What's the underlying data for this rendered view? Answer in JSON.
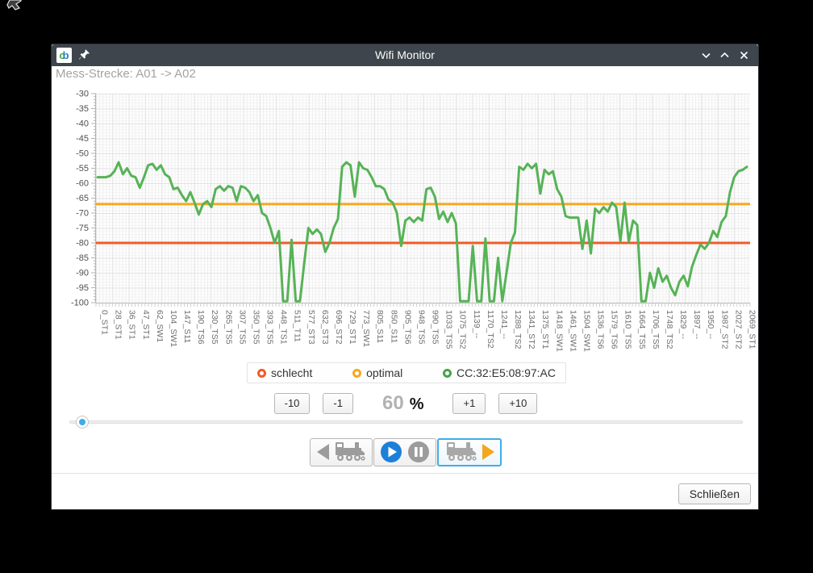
{
  "window": {
    "title": "Wifi Monitor",
    "app_icon": {
      "letter_c": "c",
      "letter_b": "b"
    },
    "subtitle": "Mess-Strecke: A01 -> A02"
  },
  "chart_data": {
    "type": "line",
    "title": "",
    "xlabel": "",
    "ylabel": "",
    "ylim": [
      -100,
      -30
    ],
    "grid": true,
    "legend_position": "bottom",
    "y_ticks": [
      -30,
      -35,
      -40,
      -45,
      -50,
      -55,
      -60,
      -65,
      -70,
      -75,
      -80,
      -85,
      -90,
      -95,
      -100
    ],
    "x_labels": [
      "0_ST1",
      "28_ST1",
      "36_ST1",
      "47_ST1",
      "62_SW1",
      "104_SW1",
      "147_S11",
      "190_TS6",
      "230_TS5",
      "265_TS5",
      "307_TS5",
      "350_TS5",
      "393_TS5",
      "448_TS1",
      "511_T11",
      "577_ST3",
      "632_ST3",
      "696_ST2",
      "729_ST1",
      "773_SW1",
      "805_S11",
      "850_S11",
      "905_TS6",
      "948_TS5",
      "990_TS5",
      "1033_TS5",
      "1075_TS2",
      "1139_--",
      "1170_TS2",
      "1241_--",
      "1288_TS2",
      "1341_ST2",
      "1375_ST1",
      "1418_SW1",
      "1461_SW1",
      "1504_SW1",
      "1536_TS6",
      "1579_TS6",
      "1610_TS5",
      "1664_TS5",
      "1706_TS5",
      "1748_TS2",
      "1829_--",
      "1897_--",
      "1950_--",
      "1987_ST2",
      "2027_ST2",
      "2069_ST1"
    ],
    "thresholds": [
      {
        "name": "schlecht",
        "value": -80,
        "color": "#f25a28"
      },
      {
        "name": "optimal",
        "value": -67,
        "color": "#f8a71e"
      }
    ],
    "series": [
      {
        "name": "CC:32:E5:08:97:AC",
        "color": "#56b356",
        "values": [
          -58,
          -58,
          -58,
          -57.5,
          -56,
          -53,
          -57,
          -55,
          -57.5,
          -58,
          -61.5,
          -58,
          -54,
          -53.5,
          -55.5,
          -54,
          -57,
          -58,
          -62,
          -61.5,
          -64,
          -66,
          -63,
          -66.5,
          -70.5,
          -67,
          -66,
          -68,
          -62,
          -61,
          -62.5,
          -61,
          -61.5,
          -66,
          -61,
          -61.5,
          -63,
          -66,
          -64,
          -70,
          -71,
          -75,
          -80,
          -76,
          -99.5,
          -99.5,
          -79,
          -99.5,
          -99.5,
          -87,
          -75,
          -77,
          -75.5,
          -77,
          -83,
          -80,
          -75,
          -72,
          -54.5,
          -53,
          -54,
          -64.5,
          -53,
          -55,
          -55.5,
          -58,
          -61,
          -61,
          -62,
          -65.5,
          -66.5,
          -70,
          -81,
          -72.5,
          -71.5,
          -73,
          -71.5,
          -72.5,
          -62,
          -61.5,
          -64.5,
          -72,
          -69.5,
          -73,
          -70,
          -73.5,
          -99.5,
          -99.5,
          -99.5,
          -81,
          -99.5,
          -99.5,
          -78.5,
          -99.5,
          -99.5,
          -85,
          -99.5,
          -90,
          -80,
          -76.5,
          -54.5,
          -55.5,
          -53.5,
          -55,
          -53.5,
          -63.5,
          -55.5,
          -57,
          -56,
          -62,
          -64.5,
          -71,
          -71.5,
          -71.5,
          -71.5,
          -82,
          -72.5,
          -83.5,
          -68.5,
          -70,
          -68,
          -69.5,
          -66.5,
          -68,
          -79.5,
          -66.5,
          -79.5,
          -72.5,
          -74,
          -99.5,
          -99.5,
          -90,
          -95,
          -88.5,
          -93,
          -91,
          -95,
          -97.5,
          -93,
          -91,
          -94.5,
          -88,
          -84,
          -80.5,
          -82,
          -80,
          -76,
          -78,
          -73,
          -71,
          -63,
          -58,
          -56,
          -55.5,
          -54.5
        ]
      }
    ]
  },
  "legend": {
    "items": [
      {
        "label": "schlecht",
        "color": "#f25a28"
      },
      {
        "label": "optimal",
        "color": "#f8a71e"
      },
      {
        "label": "CC:32:E5:08:97:AC",
        "color": "#47a447"
      }
    ]
  },
  "controls": {
    "minus10_label": "-10",
    "minus1_label": "-1",
    "plus1_label": "+1",
    "plus10_label": "+10",
    "percent_value": "60",
    "percent_unit": "%",
    "slider_position_percent": 1
  },
  "icons": {
    "transport_back": "train-left-icon",
    "transport_play": "play-icon",
    "transport_pause": "pause-icon",
    "transport_forward": "train-right-icon",
    "titlebar_left": [
      "app-logo-icon",
      "pin-icon"
    ],
    "titlebar_right": [
      "minimize-icon",
      "maximize-icon",
      "close-icon"
    ]
  },
  "footer": {
    "close_label": "Schließen"
  }
}
